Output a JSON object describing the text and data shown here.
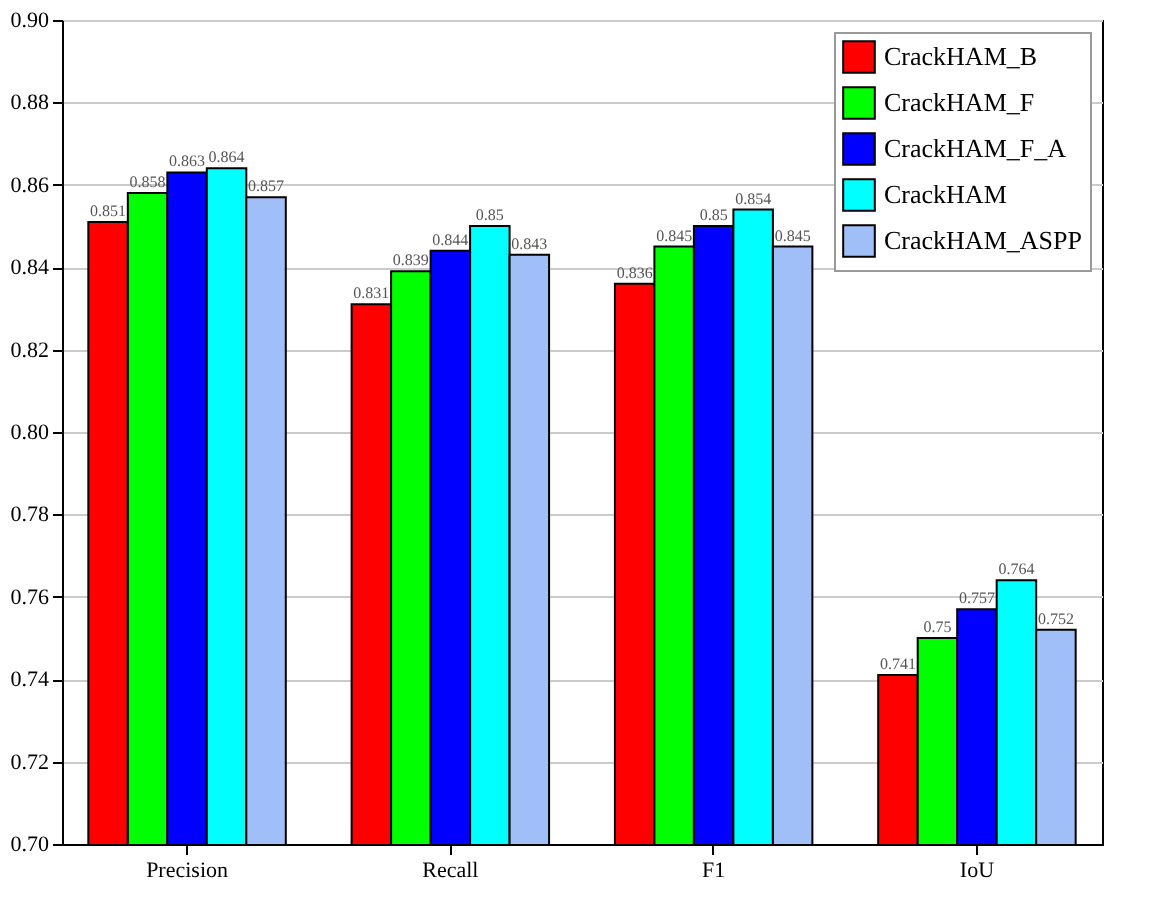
{
  "chart_data": {
    "type": "bar",
    "categories": [
      "Precision",
      "Recall",
      "F1",
      "IoU"
    ],
    "series": [
      {
        "name": "CrackHAM_B",
        "color": "#ff0000",
        "values": [
          0.851,
          0.831,
          0.836,
          0.741
        ]
      },
      {
        "name": "CrackHAM_F",
        "color": "#00ff00",
        "values": [
          0.858,
          0.839,
          0.845,
          0.75
        ]
      },
      {
        "name": "CrackHAM_F_A",
        "color": "#0000ff",
        "values": [
          0.863,
          0.844,
          0.85,
          0.757
        ]
      },
      {
        "name": "CrackHAM",
        "color": "#00ffff",
        "values": [
          0.864,
          0.85,
          0.854,
          0.764
        ]
      },
      {
        "name": "CrackHAM_ASPP",
        "color": "#a0bff8",
        "values": [
          0.857,
          0.843,
          0.845,
          0.752
        ]
      }
    ],
    "ylim": [
      0.7,
      0.9
    ],
    "yticks": [
      {
        "value": 0.7,
        "label": "0.70"
      },
      {
        "value": 0.72,
        "label": "0.72"
      },
      {
        "value": 0.74,
        "label": "0.74"
      },
      {
        "value": 0.76,
        "label": "0.76"
      },
      {
        "value": 0.78,
        "label": "0.78"
      },
      {
        "value": 0.8,
        "label": "0.80"
      },
      {
        "value": 0.82,
        "label": "0.82"
      },
      {
        "value": 0.84,
        "label": "0.84"
      },
      {
        "value": 0.86,
        "label": "0.86"
      },
      {
        "value": 0.88,
        "label": "0.88"
      },
      {
        "value": 0.9,
        "label": "0.90"
      }
    ],
    "grid": "y",
    "legend": "top right",
    "data_labels": true
  }
}
